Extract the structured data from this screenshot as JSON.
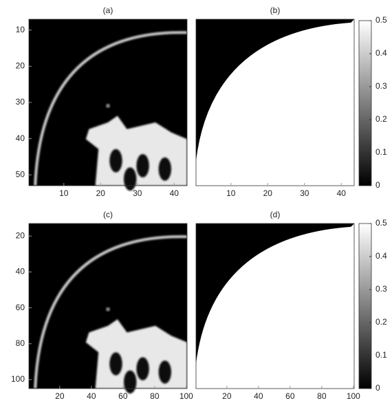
{
  "chart_data": [
    {
      "type": "image",
      "title": "(a)",
      "colormap": "gray",
      "xlim": [
        0.5,
        43.5
      ],
      "ylim": [
        7,
        53
      ],
      "y_inverted": true,
      "xticks": [
        10,
        20,
        30,
        40
      ],
      "yticks": [
        10,
        20,
        30,
        40,
        50
      ]
    },
    {
      "type": "image",
      "title": "(b)",
      "colormap": "gray",
      "xlim": [
        0.5,
        43.5
      ],
      "ylim": [
        7,
        53
      ],
      "y_inverted": true,
      "xticks": [
        10,
        20,
        30,
        40
      ],
      "yticks": []
    },
    {
      "type": "colorbar",
      "colormap": "gray",
      "clim": [
        0,
        0.5
      ],
      "ticks": [
        0,
        0.1,
        0.2,
        0.3,
        0.4,
        0.5
      ]
    },
    {
      "type": "image",
      "title": "(c)",
      "colormap": "gray",
      "xlim": [
        0.5,
        100.5
      ],
      "ylim": [
        13,
        105
      ],
      "y_inverted": true,
      "xticks": [
        20,
        40,
        60,
        80,
        100
      ],
      "yticks": [
        20,
        40,
        60,
        80,
        100
      ]
    },
    {
      "type": "image",
      "title": "(d)",
      "colormap": "gray",
      "xlim": [
        0.5,
        100.5
      ],
      "ylim": [
        13,
        105
      ],
      "y_inverted": true,
      "xticks": [
        20,
        40,
        60,
        80,
        100
      ],
      "yticks": []
    },
    {
      "type": "colorbar",
      "colormap": "gray",
      "clim": [
        0,
        0.5
      ],
      "ticks": [
        0,
        0.1,
        0.2,
        0.3,
        0.4,
        0.5
      ]
    }
  ]
}
